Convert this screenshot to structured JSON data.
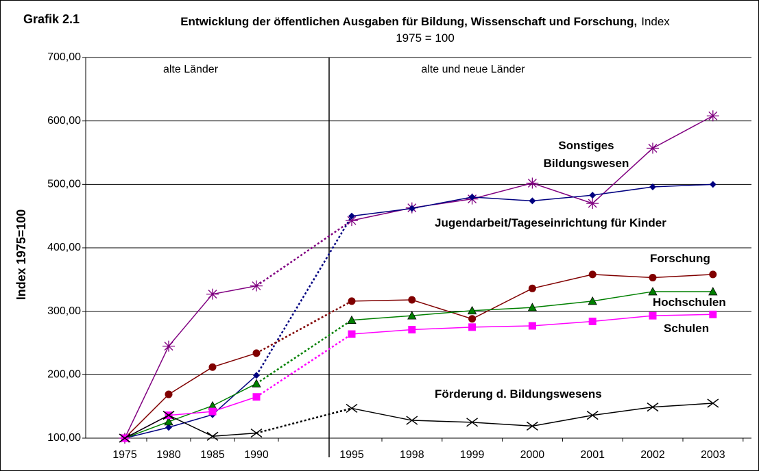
{
  "chart_data": {
    "type": "line",
    "label": "Grafik 2.1",
    "title": "Entwicklung der öffentlichen Ausgaben für Bildung, Wissenschaft und Forschung,",
    "subtitle": "Index 1975 = 100",
    "y_label": "Index 1975=100",
    "annotations": [
      "alte Länder",
      "alte und neue Länder"
    ],
    "categories": [
      "1975",
      "1980",
      "1985",
      "1990",
      "1995",
      "1998",
      "1999",
      "2000",
      "2001",
      "2002",
      "2003"
    ],
    "ylim": [
      100,
      700
    ],
    "yticks": [
      {
        "value": 100,
        "label": "100,00"
      },
      {
        "value": 200,
        "label": "200,00"
      },
      {
        "value": 300,
        "label": "300,00"
      },
      {
        "value": 400,
        "label": "400,00"
      },
      {
        "value": 500,
        "label": "500,00"
      },
      {
        "value": 600,
        "label": "600,00"
      },
      {
        "value": 700,
        "label": "700,00"
      }
    ],
    "grid": true,
    "series": [
      {
        "name": "Sonstiges Bildungswesen",
        "color": "#800080",
        "marker": "star",
        "values": [
          100,
          245,
          327,
          340,
          443,
          463,
          477,
          502,
          470,
          557,
          608
        ]
      },
      {
        "name": "Jugendarbeit/Tageseinrichtung für Kinder",
        "color": "#000080",
        "marker": "diamond",
        "values": [
          100,
          117,
          137,
          199,
          450,
          462,
          480,
          474,
          483,
          496,
          500
        ]
      },
      {
        "name": "Forschung",
        "color": "#800000",
        "marker": "circle",
        "values": [
          100,
          169,
          212,
          234,
          316,
          318,
          288,
          336,
          358,
          353,
          358
        ]
      },
      {
        "name": "Hochschulen",
        "color": "#008000",
        "marker": "triangle",
        "values": [
          100,
          126,
          151,
          186,
          286,
          293,
          301,
          306,
          316,
          331,
          331
        ]
      },
      {
        "name": "Schulen",
        "color": "#ff00ff",
        "marker": "square",
        "values": [
          100,
          136,
          142,
          165,
          264,
          271,
          275,
          277,
          284,
          293,
          295
        ]
      },
      {
        "name": "Förderung d. Bildungswesens",
        "color": "#000000",
        "marker": "x",
        "values": [
          100,
          136,
          103,
          108,
          147,
          128,
          125,
          119,
          136,
          149,
          155
        ]
      }
    ]
  }
}
